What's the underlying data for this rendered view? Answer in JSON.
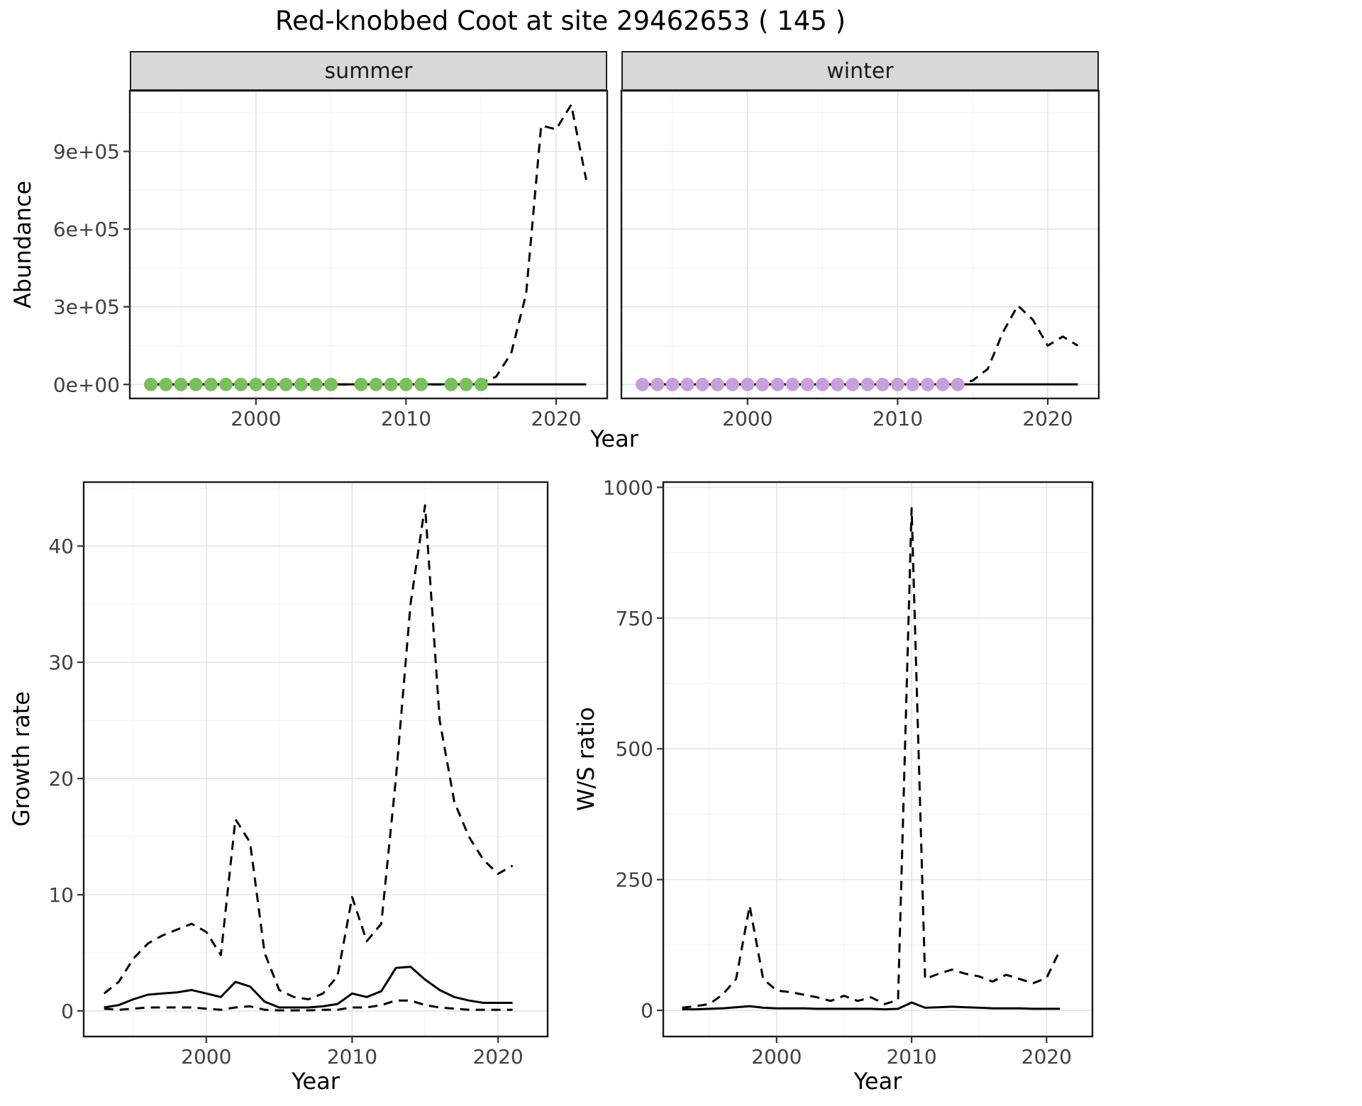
{
  "title": "Red-knobbed Coot at site 29462653 ( 145 )",
  "colors": {
    "summer_dot": "#7bbf5c",
    "winter_dot": "#c79fd9",
    "line": "#000000",
    "grid_major": "#e4e4e4",
    "grid_minor": "#f1f1f1",
    "strip_bg": "#d8d8d8",
    "panel_border": "#1a1a1a",
    "tick_text": "#404040"
  },
  "chart_data": [
    {
      "id": "abundance_summer",
      "type": "line",
      "facet_label": "summer",
      "xlabel": "Year",
      "ylabel": "Abundance",
      "xlim": [
        1991.6,
        2023.4
      ],
      "ylim": [
        -54000,
        1134000
      ],
      "xticks": {
        "values": [
          2000,
          2010,
          2020
        ],
        "labels": [
          "2000",
          "2010",
          "2020"
        ]
      },
      "yticks": {
        "values": [
          0,
          300000,
          600000,
          900000
        ],
        "labels": [
          "0e+00",
          "3e+05",
          "6e+05",
          "9e+05"
        ]
      },
      "series": [
        {
          "name": "index_estimate",
          "style": "solid",
          "x": [
            1993,
            1994,
            1995,
            1996,
            1997,
            1998,
            1999,
            2000,
            2001,
            2002,
            2003,
            2004,
            2005,
            2006,
            2007,
            2008,
            2009,
            2010,
            2011,
            2012,
            2013,
            2014,
            2015,
            2016,
            2017,
            2018,
            2019,
            2020,
            2021,
            2022
          ],
          "y": [
            500,
            500,
            500,
            500,
            500,
            500,
            500,
            500,
            500,
            500,
            500,
            500,
            500,
            500,
            500,
            500,
            500,
            500,
            500,
            500,
            500,
            500,
            500,
            500,
            500,
            500,
            500,
            500,
            500,
            500
          ]
        },
        {
          "name": "index_upper",
          "style": "dashed",
          "x": [
            1993,
            1994,
            1995,
            1996,
            1997,
            1998,
            1999,
            2000,
            2001,
            2002,
            2003,
            2004,
            2005,
            2006,
            2007,
            2008,
            2009,
            2010,
            2011,
            2012,
            2013,
            2014,
            2015,
            2016,
            2017,
            2018,
            2019,
            2020,
            2021,
            2022
          ],
          "y": [
            200,
            200,
            200,
            200,
            200,
            200,
            200,
            200,
            200,
            200,
            200,
            200,
            200,
            200,
            200,
            200,
            200,
            200,
            200,
            200,
            200,
            200,
            6000,
            30000,
            120000,
            350000,
            1000000,
            985000,
            1080000,
            790000
          ]
        }
      ],
      "points": {
        "name": "observed_counts",
        "color_key": "summer_dot",
        "x": [
          1993,
          1994,
          1995,
          1996,
          1997,
          1998,
          1999,
          2000,
          2001,
          2002,
          2003,
          2004,
          2005,
          2007,
          2008,
          2009,
          2010,
          2011,
          2013,
          2014,
          2015
        ],
        "y": [
          0,
          0,
          0,
          0,
          0,
          0,
          0,
          0,
          0,
          0,
          0,
          0,
          0,
          0,
          0,
          0,
          0,
          0,
          0,
          0,
          0
        ]
      }
    },
    {
      "id": "abundance_winter",
      "type": "line",
      "facet_label": "winter",
      "xlabel": "Year",
      "xlim": [
        1991.6,
        2023.4
      ],
      "ylim": [
        -54000,
        1134000
      ],
      "xticks": {
        "values": [
          2000,
          2010,
          2020
        ],
        "labels": [
          "2000",
          "2010",
          "2020"
        ]
      },
      "yticks": {
        "values": [
          0,
          300000,
          600000,
          900000
        ],
        "labels": [
          "0e+00",
          "3e+05",
          "6e+05",
          "9e+05"
        ]
      },
      "series": [
        {
          "name": "index_estimate",
          "style": "solid",
          "x": [
            1993,
            1994,
            1995,
            1996,
            1997,
            1998,
            1999,
            2000,
            2001,
            2002,
            2003,
            2004,
            2005,
            2006,
            2007,
            2008,
            2009,
            2010,
            2011,
            2012,
            2013,
            2014,
            2015,
            2016,
            2017,
            2018,
            2019,
            2020,
            2021,
            2022
          ],
          "y": [
            500,
            500,
            500,
            500,
            500,
            500,
            500,
            500,
            500,
            500,
            500,
            500,
            500,
            500,
            500,
            500,
            500,
            500,
            500,
            500,
            500,
            500,
            500,
            500,
            500,
            500,
            500,
            500,
            500,
            500
          ]
        },
        {
          "name": "index_upper",
          "style": "dashed",
          "x": [
            1993,
            1994,
            1995,
            1996,
            1997,
            1998,
            1999,
            2000,
            2001,
            2002,
            2003,
            2004,
            2005,
            2006,
            2007,
            2008,
            2009,
            2010,
            2011,
            2012,
            2013,
            2014,
            2015,
            2016,
            2017,
            2018,
            2019,
            2020,
            2021,
            2022
          ],
          "y": [
            200,
            200,
            200,
            200,
            200,
            200,
            200,
            200,
            200,
            200,
            200,
            200,
            200,
            200,
            200,
            200,
            200,
            200,
            200,
            200,
            200,
            2000,
            15000,
            60000,
            200000,
            305000,
            250000,
            150000,
            185000,
            150000
          ]
        }
      ],
      "points": {
        "name": "observed_counts",
        "color_key": "winter_dot",
        "x": [
          1993,
          1994,
          1995,
          1996,
          1997,
          1998,
          1999,
          2000,
          2001,
          2002,
          2003,
          2004,
          2005,
          2006,
          2007,
          2008,
          2009,
          2010,
          2011,
          2012,
          2013,
          2014
        ],
        "y": [
          0,
          0,
          0,
          0,
          0,
          0,
          0,
          0,
          0,
          0,
          0,
          0,
          0,
          0,
          0,
          0,
          0,
          0,
          0,
          0,
          0,
          0
        ]
      }
    },
    {
      "id": "growth_rate",
      "type": "line",
      "xlabel": "Year",
      "ylabel": "Growth rate",
      "xlim": [
        1991.6,
        2023.4
      ],
      "ylim": [
        -2.2,
        45.5
      ],
      "xticks": {
        "values": [
          2000,
          2010,
          2020
        ],
        "labels": [
          "2000",
          "2010",
          "2020"
        ]
      },
      "yticks": {
        "values": [
          0,
          10,
          20,
          30,
          40
        ],
        "labels": [
          "0",
          "10",
          "20",
          "30",
          "40"
        ]
      },
      "series": [
        {
          "name": "growth_estimate",
          "style": "solid",
          "x": [
            1993,
            1994,
            1995,
            1996,
            1997,
            1998,
            1999,
            2000,
            2001,
            2002,
            2003,
            2004,
            2005,
            2006,
            2007,
            2008,
            2009,
            2010,
            2011,
            2012,
            2013,
            2014,
            2015,
            2016,
            2017,
            2018,
            2019,
            2020,
            2021
          ],
          "y": [
            0.3,
            0.5,
            1.0,
            1.4,
            1.5,
            1.6,
            1.8,
            1.5,
            1.2,
            2.5,
            2.1,
            0.8,
            0.3,
            0.3,
            0.3,
            0.4,
            0.6,
            1.5,
            1.2,
            1.7,
            3.7,
            3.8,
            2.7,
            1.8,
            1.2,
            0.9,
            0.7,
            0.7,
            0.7
          ]
        },
        {
          "name": "growth_upper",
          "style": "dashed",
          "x": [
            1993,
            1994,
            1995,
            1996,
            1997,
            1998,
            1999,
            2000,
            2001,
            2002,
            2003,
            2004,
            2005,
            2006,
            2007,
            2008,
            2009,
            2010,
            2011,
            2012,
            2013,
            2014,
            2015,
            2016,
            2017,
            2018,
            2019,
            2020,
            2021
          ],
          "y": [
            1.5,
            2.5,
            4.5,
            5.8,
            6.5,
            7.0,
            7.5,
            6.8,
            4.8,
            16.5,
            14.5,
            5.0,
            1.8,
            1.2,
            1.0,
            1.5,
            3.0,
            9.8,
            6.0,
            7.5,
            20.0,
            35.0,
            43.5,
            25.0,
            18.0,
            15.0,
            13.0,
            11.8,
            12.5
          ]
        },
        {
          "name": "growth_lower",
          "style": "dashed",
          "x": [
            1993,
            1994,
            1995,
            1996,
            1997,
            1998,
            1999,
            2000,
            2001,
            2002,
            2003,
            2004,
            2005,
            2006,
            2007,
            2008,
            2009,
            2010,
            2011,
            2012,
            2013,
            2014,
            2015,
            2016,
            2017,
            2018,
            2019,
            2020,
            2021
          ],
          "y": [
            0.2,
            0.1,
            0.2,
            0.3,
            0.3,
            0.3,
            0.3,
            0.2,
            0.1,
            0.3,
            0.4,
            0.1,
            0.05,
            0.05,
            0.05,
            0.1,
            0.1,
            0.3,
            0.3,
            0.5,
            0.9,
            0.9,
            0.5,
            0.3,
            0.2,
            0.1,
            0.1,
            0.1,
            0.1
          ]
        }
      ]
    },
    {
      "id": "ws_ratio",
      "type": "line",
      "xlabel": "Year",
      "ylabel": "W/S ratio",
      "xlim": [
        1991.6,
        2023.4
      ],
      "ylim": [
        -50,
        1010
      ],
      "xticks": {
        "values": [
          2000,
          2010,
          2020
        ],
        "labels": [
          "2000",
          "2010",
          "2020"
        ]
      },
      "yticks": {
        "values": [
          0,
          250,
          500,
          750,
          1000
        ],
        "labels": [
          "0",
          "250",
          "500",
          "750",
          "1000"
        ]
      },
      "series": [
        {
          "name": "ratio_estimate",
          "style": "solid",
          "x": [
            1993,
            1994,
            1995,
            1996,
            1997,
            1998,
            1999,
            2000,
            2001,
            2002,
            2003,
            2004,
            2005,
            2006,
            2007,
            2008,
            2009,
            2010,
            2011,
            2012,
            2013,
            2014,
            2015,
            2016,
            2017,
            2018,
            2019,
            2020,
            2021
          ],
          "y": [
            2,
            2,
            3,
            4,
            6,
            8,
            5,
            4,
            4,
            4,
            3,
            3,
            3,
            3,
            3,
            2,
            3,
            15,
            5,
            6,
            7,
            6,
            5,
            4,
            4,
            4,
            3,
            3,
            3
          ]
        },
        {
          "name": "ratio_upper",
          "style": "dashed",
          "x": [
            1993,
            1994,
            1995,
            1996,
            1997,
            1998,
            1999,
            2000,
            2001,
            2002,
            2003,
            2004,
            2005,
            2006,
            2007,
            2008,
            2009,
            2010,
            2011,
            2012,
            2013,
            2014,
            2015,
            2016,
            2017,
            2018,
            2019,
            2020,
            2021
          ],
          "y": [
            5,
            8,
            12,
            30,
            60,
            200,
            60,
            38,
            35,
            30,
            25,
            18,
            28,
            18,
            25,
            12,
            20,
            960,
            60,
            70,
            78,
            70,
            65,
            55,
            68,
            60,
            52,
            62,
            115
          ]
        }
      ]
    }
  ]
}
